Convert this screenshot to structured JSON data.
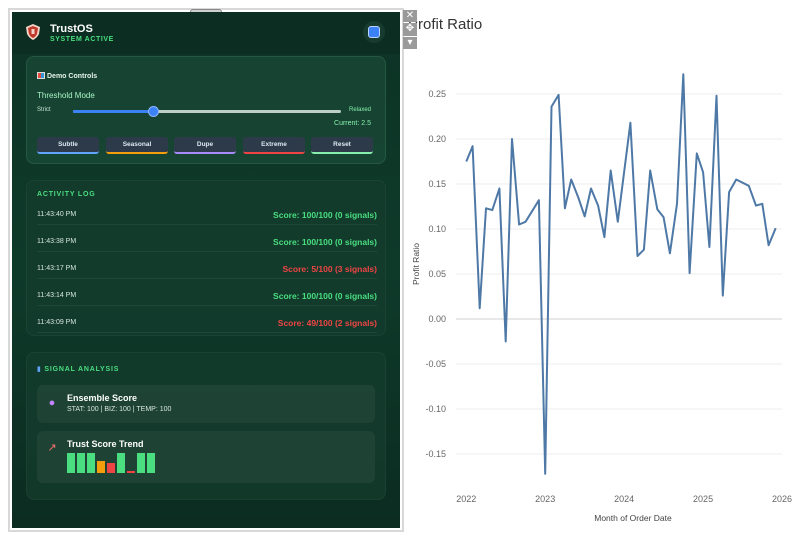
{
  "app": {
    "title": "TrustOS",
    "status": "SYSTEM ACTIVE"
  },
  "demo_controls": {
    "title": "Demo Controls",
    "threshold_label": "Threshold Mode",
    "strict_label": "Strict",
    "relaxed_label": "Relaxed",
    "current_label": "Current: 2.5",
    "slider_fraction": 0.3,
    "buttons": [
      {
        "label": "Subtle",
        "color": "#60a5fa"
      },
      {
        "label": "Seasonal",
        "color": "#f59e0b"
      },
      {
        "label": "Dupe",
        "color": "#a78bfa"
      },
      {
        "label": "Extreme",
        "color": "#ef4444"
      },
      {
        "label": "Reset",
        "color": "#86efac"
      }
    ]
  },
  "activity_log": {
    "title": "ACTIVITY LOG",
    "rows": [
      {
        "time": "11:43:40 PM",
        "score": "Score: 100/100 (0 signals)",
        "color": "#4ade80"
      },
      {
        "time": "11:43:38 PM",
        "score": "Score: 100/100 (0 signals)",
        "color": "#4ade80"
      },
      {
        "time": "11:43:17 PM",
        "score": "Score: 5/100 (3 signals)",
        "color": "#ef4444"
      },
      {
        "time": "11:43:14 PM",
        "score": "Score: 100/100 (0 signals)",
        "color": "#4ade80"
      },
      {
        "time": "11:43:09 PM",
        "score": "Score: 49/100 (2 signals)",
        "color": "#ef4444"
      }
    ]
  },
  "signal_analysis": {
    "title": "SIGNAL ANALYSIS",
    "ensemble_title": "Ensemble Score",
    "ensemble_detail": "STAT: 100 | BIZ: 100 | TEMP: 100",
    "trend_title": "Trust Score Trend",
    "trend_values": [
      100,
      100,
      100,
      60,
      50,
      100,
      10,
      100,
      100
    ],
    "trend_colors": [
      "#4ade80",
      "#4ade80",
      "#4ade80",
      "#f59e0b",
      "#ef4444",
      "#4ade80",
      "#ef4444",
      "#4ade80",
      "#4ade80"
    ]
  },
  "chart_data": {
    "type": "line",
    "title": "Profit Ratio",
    "xlabel": "Month of Order Date",
    "ylabel": "Profit Ratio",
    "x_ticks": [
      "2022",
      "2023",
      "2024",
      "2025",
      "2026"
    ],
    "y_ticks": [
      "0.25",
      "0.20",
      "0.15",
      "0.10",
      "0.05",
      "0.00",
      "-0.05",
      "-0.10",
      "-0.15"
    ],
    "ylim": [
      -0.19,
      0.29
    ],
    "xlim": [
      2021.87,
      2026.0
    ],
    "grid": true,
    "line_color": "#4e79a7",
    "points": [
      [
        2022.0,
        0.175
      ],
      [
        2022.08,
        0.192
      ],
      [
        2022.17,
        0.012
      ],
      [
        2022.25,
        0.123
      ],
      [
        2022.33,
        0.121
      ],
      [
        2022.42,
        0.145
      ],
      [
        2022.5,
        -0.025
      ],
      [
        2022.58,
        0.2
      ],
      [
        2022.67,
        0.105
      ],
      [
        2022.75,
        0.108
      ],
      [
        2022.92,
        0.132
      ],
      [
        2023.0,
        -0.172
      ],
      [
        2023.08,
        0.236
      ],
      [
        2023.17,
        0.249
      ],
      [
        2023.25,
        0.123
      ],
      [
        2023.33,
        0.155
      ],
      [
        2023.42,
        0.135
      ],
      [
        2023.5,
        0.114
      ],
      [
        2023.58,
        0.145
      ],
      [
        2023.67,
        0.126
      ],
      [
        2023.75,
        0.091
      ],
      [
        2023.83,
        0.165
      ],
      [
        2023.92,
        0.108
      ],
      [
        2024.08,
        0.218
      ],
      [
        2024.17,
        0.07
      ],
      [
        2024.25,
        0.077
      ],
      [
        2024.33,
        0.165
      ],
      [
        2024.42,
        0.122
      ],
      [
        2024.5,
        0.113
      ],
      [
        2024.58,
        0.073
      ],
      [
        2024.67,
        0.128
      ],
      [
        2024.75,
        0.272
      ],
      [
        2024.83,
        0.051
      ],
      [
        2024.92,
        0.184
      ],
      [
        2025.0,
        0.163
      ],
      [
        2025.08,
        0.08
      ],
      [
        2025.17,
        0.248
      ],
      [
        2025.25,
        0.026
      ],
      [
        2025.33,
        0.141
      ],
      [
        2025.42,
        0.155
      ],
      [
        2025.58,
        0.148
      ],
      [
        2025.67,
        0.126
      ],
      [
        2025.75,
        0.128
      ],
      [
        2025.83,
        0.082
      ],
      [
        2025.92,
        0.101
      ]
    ]
  }
}
